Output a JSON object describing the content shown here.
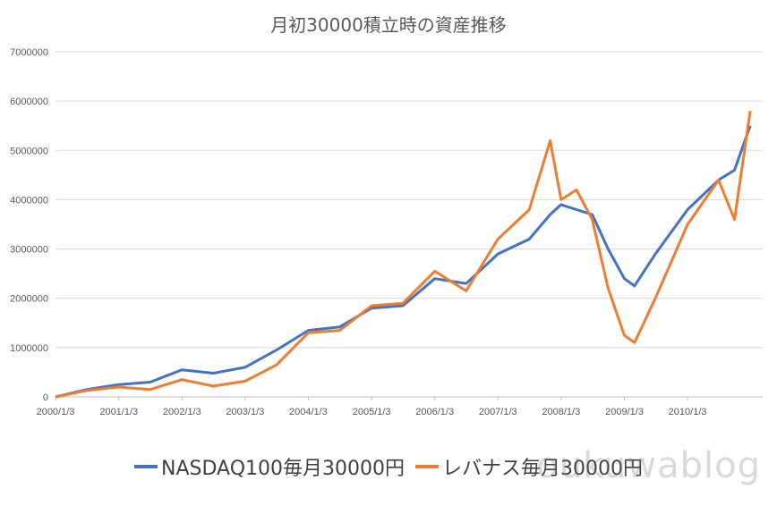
{
  "chart_data": {
    "type": "line",
    "title": "月初30000積立時の資産推移",
    "xlabel": "",
    "ylabel": "",
    "ylim": [
      0,
      7000000
    ],
    "y_ticks": [
      "0",
      "1000000",
      "2000000",
      "3000000",
      "4000000",
      "5000000",
      "6000000",
      "7000000"
    ],
    "x_ticks": [
      "2000/1/3",
      "2001/1/3",
      "2002/1/3",
      "2003/1/3",
      "2004/1/3",
      "2005/1/3",
      "2006/1/3",
      "2007/1/3",
      "2008/1/3",
      "2009/1/3",
      "2010/1/3"
    ],
    "x": [
      "2000/1/3",
      "2000/7/3",
      "2001/1/3",
      "2001/7/3",
      "2002/1/3",
      "2002/7/3",
      "2003/1/3",
      "2003/7/3",
      "2004/1/3",
      "2004/7/3",
      "2005/1/3",
      "2005/7/3",
      "2006/1/3",
      "2006/7/3",
      "2007/1/3",
      "2007/7/3",
      "2007/11/1",
      "2008/1/3",
      "2008/4/1",
      "2008/7/1",
      "2008/10/1",
      "2009/1/3",
      "2009/3/2",
      "2009/7/1",
      "2010/1/3",
      "2010/7/1",
      "2010/10/1",
      "2010/12/31"
    ],
    "series": [
      {
        "name": "NASDAQ100毎月30000円",
        "color": "#4472c4",
        "values": [
          0,
          150000,
          250000,
          300000,
          550000,
          480000,
          600000,
          950000,
          1350000,
          1420000,
          1800000,
          1850000,
          2400000,
          2300000,
          2900000,
          3200000,
          3700000,
          3900000,
          3800000,
          3700000,
          3000000,
          2400000,
          2250000,
          2900000,
          3800000,
          4400000,
          4600000,
          5500000
        ]
      },
      {
        "name": "レバナス毎月30000円",
        "color": "#ed7d31",
        "values": [
          0,
          130000,
          200000,
          150000,
          350000,
          220000,
          320000,
          650000,
          1300000,
          1350000,
          1850000,
          1900000,
          2550000,
          2150000,
          3200000,
          3800000,
          5200000,
          4000000,
          4200000,
          3600000,
          2200000,
          1250000,
          1100000,
          2000000,
          3500000,
          4400000,
          3600000,
          5800000
        ]
      }
    ],
    "legend_position": "bottom",
    "grid": true
  },
  "watermark": "oukuwablog"
}
